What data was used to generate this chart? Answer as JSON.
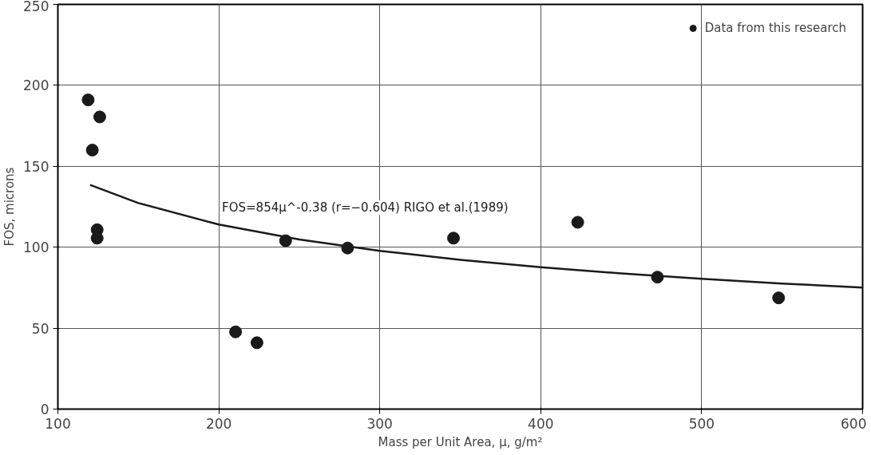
{
  "chart_data": {
    "type": "scatter",
    "xlabel": "Mass per Unit Area, μ, g/m²",
    "ylabel": "FOS, microns",
    "xlim": [
      100,
      600
    ],
    "xticks": [
      100,
      200,
      300,
      400,
      500,
      600
    ],
    "ylim": [
      0,
      250
    ],
    "yticks": [
      0,
      50,
      100,
      150,
      200,
      250
    ],
    "grid": true,
    "legend": "top right",
    "series": [
      {
        "name": "Data from this research",
        "color": "#1a1a1a",
        "marker": "circle",
        "x": [
          118.8,
          121.4,
          126,
          124.4,
          124.4,
          210.4,
          223.7,
          241.5,
          280,
          345.8,
          423,
          472.5,
          547.8
        ],
        "values": [
          191,
          160,
          180.5,
          110.8,
          105.6,
          47.7,
          41,
          104,
          99.5,
          105.6,
          115.4,
          81.5,
          68.7
        ]
      },
      {
        "name": "FOS=854μ^-0.38 (r=−0.604) RIGO et al.(1989)",
        "type": "line",
        "color": "#1a1a1a",
        "line_style": "solid",
        "x": [
          120,
          150,
          200,
          250,
          300,
          350,
          400,
          450,
          500,
          550,
          600
        ],
        "values": [
          138.5,
          127.3,
          114.0,
          104.8,
          97.8,
          92.2,
          87.6,
          83.8,
          80.5,
          77.6,
          75.1
        ]
      }
    ]
  }
}
